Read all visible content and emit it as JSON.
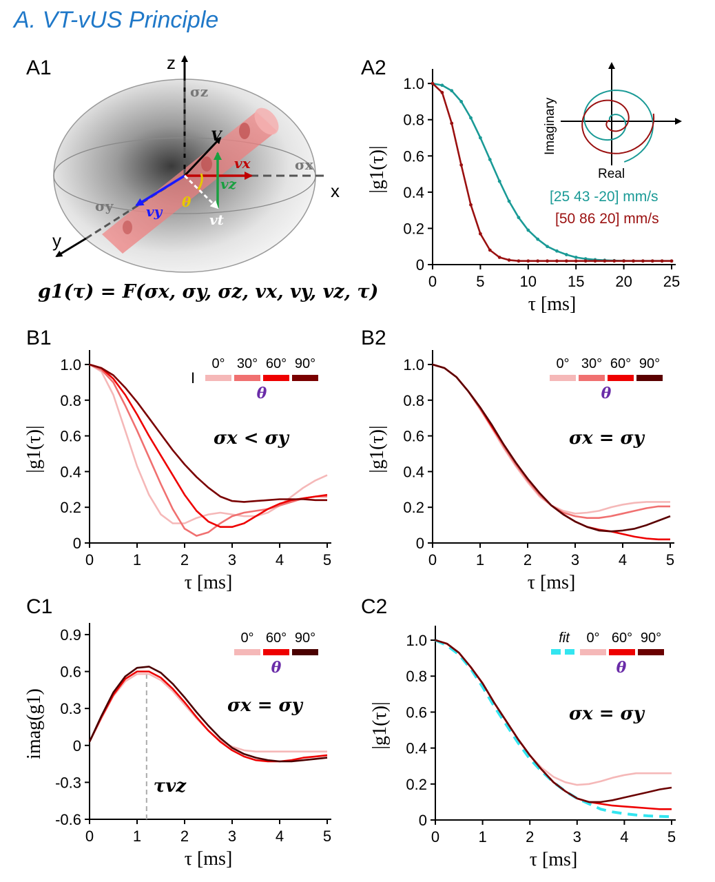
{
  "section_title": "A.   VT-vUS Principle",
  "panel_a1": {
    "label": "A1",
    "axis_x": "x",
    "axis_y": "y",
    "axis_z": "z",
    "sigma_x": "σx",
    "sigma_y": "σy",
    "sigma_z": "σz",
    "v_label": "V",
    "vx_label": "vx",
    "vy_label": "vy",
    "vz_label": "vz",
    "vt_label": "vt",
    "theta_label": "θ",
    "formula": "g1(τ) = F(σx, σy, σz, vx, vy, vz, τ)",
    "colors": {
      "vx": "#c00000",
      "vy": "#1a1aff",
      "vz": "#1aa040",
      "theta": "#e6c800",
      "vessel": "#f08080"
    }
  },
  "chart_data": [
    {
      "id": "A2",
      "label": "A2",
      "type": "line",
      "xlabel": "τ [ms]",
      "ylabel": "|g1(τ)|",
      "xlim": [
        0,
        25
      ],
      "ylim": [
        0,
        1.05
      ],
      "xticks": [
        0,
        5,
        10,
        15,
        20,
        25
      ],
      "yticks": [
        0,
        0.2,
        0.4,
        0.6,
        0.8,
        1.0
      ],
      "ytick_labels": [
        "0",
        "0.2",
        "0.4",
        "0.6",
        "0.8",
        "1.0"
      ],
      "series": [
        {
          "name": "[25 43 -20]  mm/s",
          "color": "#1a9a96",
          "x": [
            0,
            1,
            2,
            3,
            4,
            5,
            6,
            7,
            8,
            9,
            10,
            11,
            12,
            13,
            14,
            15,
            16,
            17,
            18,
            19,
            20,
            21,
            22,
            23,
            24,
            25
          ],
          "y": [
            1.0,
            0.99,
            0.96,
            0.9,
            0.81,
            0.7,
            0.58,
            0.46,
            0.35,
            0.26,
            0.19,
            0.14,
            0.1,
            0.075,
            0.055,
            0.04,
            0.032,
            0.027,
            0.024,
            0.022,
            0.021,
            0.02,
            0.02,
            0.02,
            0.02,
            0.02
          ]
        },
        {
          "name": "[50 86 20]   mm/s",
          "color": "#9a1010",
          "x": [
            0,
            1,
            2,
            3,
            4,
            5,
            6,
            7,
            8,
            9,
            10,
            11,
            12,
            13,
            14,
            15,
            16,
            17,
            18,
            19,
            20,
            21,
            22,
            23,
            24,
            25
          ],
          "y": [
            1.0,
            0.95,
            0.78,
            0.55,
            0.33,
            0.17,
            0.08,
            0.04,
            0.025,
            0.02,
            0.02,
            0.02,
            0.02,
            0.02,
            0.02,
            0.02,
            0.02,
            0.02,
            0.02,
            0.02,
            0.02,
            0.02,
            0.02,
            0.02,
            0.02,
            0.02
          ]
        }
      ],
      "inset": {
        "xlabel": "Real",
        "ylabel": "Imaginary"
      }
    },
    {
      "id": "B1",
      "label": "B1",
      "type": "line",
      "xlabel": "τ [ms]",
      "ylabel": "|g1(τ)|",
      "xlim": [
        0,
        5
      ],
      "ylim": [
        0,
        1.05
      ],
      "xticks": [
        0,
        1,
        2,
        3,
        4,
        5
      ],
      "yticks": [
        0,
        0.2,
        0.4,
        0.6,
        0.8,
        1.0
      ],
      "ytick_labels": [
        "0",
        "0.2",
        "0.4",
        "0.6",
        "0.8",
        "1.0"
      ],
      "condition": "σx < σy",
      "legend_title": "θ",
      "legend_marker": "I",
      "series": [
        {
          "name": "0°",
          "color": "#f5b8b8",
          "x": [
            0,
            0.25,
            0.5,
            0.75,
            1,
            1.25,
            1.5,
            1.75,
            2,
            2.25,
            2.5,
            2.75,
            3,
            3.25,
            3.5,
            3.75,
            4,
            4.25,
            4.5,
            4.75,
            5
          ],
          "y": [
            1.0,
            0.96,
            0.83,
            0.63,
            0.43,
            0.27,
            0.16,
            0.11,
            0.11,
            0.14,
            0.16,
            0.17,
            0.16,
            0.15,
            0.15,
            0.17,
            0.21,
            0.26,
            0.31,
            0.35,
            0.38
          ]
        },
        {
          "name": "30°",
          "color": "#f07070",
          "x": [
            0,
            0.25,
            0.5,
            0.75,
            1,
            1.25,
            1.5,
            1.75,
            2,
            2.25,
            2.5,
            2.75,
            3,
            3.25,
            3.5,
            3.75,
            4,
            4.25,
            4.5,
            4.75,
            5
          ],
          "y": [
            1.0,
            0.97,
            0.9,
            0.77,
            0.63,
            0.48,
            0.33,
            0.19,
            0.08,
            0.04,
            0.06,
            0.11,
            0.15,
            0.17,
            0.18,
            0.19,
            0.21,
            0.23,
            0.25,
            0.26,
            0.26
          ]
        },
        {
          "name": "60°",
          "color": "#ee0000",
          "x": [
            0,
            0.25,
            0.5,
            0.75,
            1,
            1.25,
            1.5,
            1.75,
            2,
            2.25,
            2.5,
            2.75,
            3,
            3.25,
            3.5,
            3.75,
            4,
            4.25,
            4.5,
            4.75,
            5
          ],
          "y": [
            1.0,
            0.98,
            0.92,
            0.83,
            0.72,
            0.6,
            0.49,
            0.38,
            0.27,
            0.18,
            0.12,
            0.09,
            0.09,
            0.11,
            0.15,
            0.19,
            0.22,
            0.24,
            0.25,
            0.26,
            0.27
          ]
        },
        {
          "name": "90°",
          "color": "#7a0000",
          "x": [
            0,
            0.25,
            0.5,
            0.75,
            1,
            1.25,
            1.5,
            1.75,
            2,
            2.25,
            2.5,
            2.75,
            3,
            3.25,
            3.5,
            3.75,
            4,
            4.25,
            4.5,
            4.75,
            5
          ],
          "y": [
            1.0,
            0.98,
            0.94,
            0.87,
            0.79,
            0.7,
            0.61,
            0.52,
            0.44,
            0.37,
            0.31,
            0.26,
            0.235,
            0.23,
            0.235,
            0.24,
            0.245,
            0.245,
            0.245,
            0.24,
            0.24
          ]
        }
      ]
    },
    {
      "id": "B2",
      "label": "B2",
      "type": "line",
      "xlabel": "τ [ms]",
      "ylabel": "|g1(τ)|",
      "xlim": [
        0,
        5
      ],
      "ylim": [
        0,
        1.05
      ],
      "xticks": [
        0,
        1,
        2,
        3,
        4,
        5
      ],
      "yticks": [
        0,
        0.2,
        0.4,
        0.6,
        0.8,
        1.0
      ],
      "ytick_labels": [
        "0",
        "0.2",
        "0.4",
        "0.6",
        "0.8",
        "1.0"
      ],
      "condition": "σx = σy",
      "legend_title": "θ",
      "series": [
        {
          "name": "0°",
          "color": "#f5b8b8",
          "x": [
            0,
            0.25,
            0.5,
            0.75,
            1,
            1.25,
            1.5,
            1.75,
            2,
            2.25,
            2.5,
            2.75,
            3,
            3.25,
            3.5,
            3.75,
            4,
            4.25,
            4.5,
            4.75,
            5
          ],
          "y": [
            1.0,
            0.98,
            0.93,
            0.85,
            0.75,
            0.64,
            0.53,
            0.43,
            0.34,
            0.26,
            0.21,
            0.18,
            0.165,
            0.17,
            0.18,
            0.2,
            0.215,
            0.225,
            0.23,
            0.23,
            0.23
          ]
        },
        {
          "name": "30°",
          "color": "#f07070",
          "x": [
            0,
            0.25,
            0.5,
            0.75,
            1,
            1.25,
            1.5,
            1.75,
            2,
            2.25,
            2.5,
            2.75,
            3,
            3.25,
            3.5,
            3.75,
            4,
            4.25,
            4.5,
            4.75,
            5
          ],
          "y": [
            1.0,
            0.98,
            0.93,
            0.85,
            0.75,
            0.65,
            0.54,
            0.44,
            0.35,
            0.27,
            0.21,
            0.17,
            0.15,
            0.14,
            0.14,
            0.15,
            0.165,
            0.18,
            0.195,
            0.205,
            0.205
          ]
        },
        {
          "name": "60°",
          "color": "#ee0000",
          "x": [
            0,
            0.25,
            0.5,
            0.75,
            1,
            1.25,
            1.5,
            1.75,
            2,
            2.25,
            2.5,
            2.75,
            3,
            3.25,
            3.5,
            3.75,
            4,
            4.25,
            4.5,
            4.75,
            5
          ],
          "y": [
            1.0,
            0.98,
            0.93,
            0.85,
            0.76,
            0.65,
            0.55,
            0.45,
            0.36,
            0.28,
            0.21,
            0.16,
            0.12,
            0.09,
            0.075,
            0.065,
            0.05,
            0.035,
            0.025,
            0.02,
            0.02
          ]
        },
        {
          "name": "90°",
          "color": "#5a0000",
          "x": [
            0,
            0.25,
            0.5,
            0.75,
            1,
            1.25,
            1.5,
            1.75,
            2,
            2.25,
            2.5,
            2.75,
            3,
            3.25,
            3.5,
            3.75,
            4,
            4.25,
            4.5,
            4.75,
            5
          ],
          "y": [
            1.0,
            0.98,
            0.93,
            0.85,
            0.76,
            0.66,
            0.55,
            0.45,
            0.36,
            0.28,
            0.21,
            0.16,
            0.12,
            0.09,
            0.07,
            0.065,
            0.07,
            0.08,
            0.1,
            0.125,
            0.15
          ]
        }
      ]
    },
    {
      "id": "C1",
      "label": "C1",
      "type": "line",
      "xlabel": "τ [ms]",
      "ylabel": "imag(g1)",
      "xlim": [
        0,
        5
      ],
      "ylim": [
        -0.6,
        0.95
      ],
      "xticks": [
        0,
        1,
        2,
        3,
        4,
        5
      ],
      "yticks": [
        -0.6,
        -0.3,
        0,
        0.3,
        0.6,
        0.9
      ],
      "ytick_labels": [
        "-0.6",
        "-0.3",
        "0",
        "0.3",
        "0.6",
        "0.9"
      ],
      "condition": "σx = σy",
      "legend_title": "θ",
      "annotation": "τvz",
      "annotation_x": 1.2,
      "series": [
        {
          "name": "0°",
          "color": "#f5b8b8",
          "x": [
            0,
            0.25,
            0.5,
            0.75,
            1,
            1.25,
            1.5,
            1.75,
            2,
            2.25,
            2.5,
            2.75,
            3,
            3.25,
            3.5,
            3.75,
            4,
            4.25,
            4.5,
            4.75,
            5
          ],
          "y": [
            0.03,
            0.22,
            0.4,
            0.52,
            0.58,
            0.58,
            0.53,
            0.44,
            0.33,
            0.22,
            0.12,
            0.04,
            -0.01,
            -0.04,
            -0.05,
            -0.05,
            -0.05,
            -0.05,
            -0.05,
            -0.05,
            -0.05
          ]
        },
        {
          "name": "60°",
          "color": "#ee0000",
          "x": [
            0,
            0.25,
            0.5,
            0.75,
            1,
            1.25,
            1.5,
            1.75,
            2,
            2.25,
            2.5,
            2.75,
            3,
            3.25,
            3.5,
            3.75,
            4,
            4.25,
            4.5,
            4.75,
            5
          ],
          "y": [
            0.03,
            0.23,
            0.41,
            0.54,
            0.6,
            0.6,
            0.55,
            0.46,
            0.35,
            0.23,
            0.12,
            0.03,
            -0.04,
            -0.09,
            -0.12,
            -0.13,
            -0.13,
            -0.12,
            -0.1,
            -0.09,
            -0.08
          ]
        },
        {
          "name": "90°",
          "color": "#4a0000",
          "x": [
            0,
            0.25,
            0.5,
            0.75,
            1,
            1.25,
            1.5,
            1.75,
            2,
            2.25,
            2.5,
            2.75,
            3,
            3.25,
            3.5,
            3.75,
            4,
            4.25,
            4.5,
            4.75,
            5
          ],
          "y": [
            0.03,
            0.24,
            0.43,
            0.56,
            0.63,
            0.64,
            0.59,
            0.5,
            0.39,
            0.27,
            0.16,
            0.06,
            -0.02,
            -0.07,
            -0.1,
            -0.12,
            -0.13,
            -0.13,
            -0.12,
            -0.11,
            -0.1
          ]
        }
      ]
    },
    {
      "id": "C2",
      "label": "C2",
      "type": "line",
      "xlabel": "τ [ms]",
      "ylabel": "|g1(τ)|",
      "xlim": [
        0,
        5
      ],
      "ylim": [
        0,
        1.05
      ],
      "xticks": [
        0,
        1,
        2,
        3,
        4,
        5
      ],
      "yticks": [
        0,
        0.2,
        0.4,
        0.6,
        0.8,
        1.0
      ],
      "ytick_labels": [
        "0",
        "0.2",
        "0.4",
        "0.6",
        "0.8",
        "1.0"
      ],
      "condition": "σx = σy",
      "legend_title": "θ",
      "series": [
        {
          "name": "fit",
          "color": "#33e5f0",
          "dashed": true,
          "x": [
            0,
            0.25,
            0.5,
            0.75,
            1,
            1.25,
            1.5,
            1.75,
            2,
            2.25,
            2.5,
            2.75,
            3,
            3.25,
            3.5,
            3.75,
            4,
            4.25,
            4.5,
            4.75,
            5
          ],
          "y": [
            1.0,
            0.97,
            0.92,
            0.84,
            0.74,
            0.63,
            0.53,
            0.43,
            0.34,
            0.27,
            0.21,
            0.16,
            0.12,
            0.09,
            0.06,
            0.045,
            0.035,
            0.028,
            0.023,
            0.02,
            0.018
          ]
        },
        {
          "name": "0°",
          "color": "#f5b8b8",
          "x": [
            0,
            0.25,
            0.5,
            0.75,
            1,
            1.25,
            1.5,
            1.75,
            2,
            2.25,
            2.5,
            2.75,
            3,
            3.25,
            3.5,
            3.75,
            4,
            4.25,
            4.5,
            4.75,
            5
          ],
          "y": [
            1.0,
            0.98,
            0.93,
            0.85,
            0.76,
            0.65,
            0.55,
            0.45,
            0.36,
            0.29,
            0.24,
            0.21,
            0.195,
            0.2,
            0.215,
            0.235,
            0.25,
            0.26,
            0.26,
            0.26,
            0.26
          ]
        },
        {
          "name": "60°",
          "color": "#ee0000",
          "x": [
            0,
            0.25,
            0.5,
            0.75,
            1,
            1.25,
            1.5,
            1.75,
            2,
            2.25,
            2.5,
            2.75,
            3,
            3.25,
            3.5,
            3.75,
            4,
            4.25,
            4.5,
            4.75,
            5
          ],
          "y": [
            1.0,
            0.98,
            0.93,
            0.85,
            0.76,
            0.65,
            0.55,
            0.45,
            0.36,
            0.28,
            0.21,
            0.16,
            0.12,
            0.1,
            0.09,
            0.08,
            0.075,
            0.07,
            0.065,
            0.06,
            0.06
          ]
        },
        {
          "name": "90°",
          "color": "#6a0000",
          "x": [
            0,
            0.25,
            0.5,
            0.75,
            1,
            1.25,
            1.5,
            1.75,
            2,
            2.25,
            2.5,
            2.75,
            3,
            3.25,
            3.5,
            3.75,
            4,
            4.25,
            4.5,
            4.75,
            5
          ],
          "y": [
            1.0,
            0.98,
            0.93,
            0.85,
            0.76,
            0.65,
            0.55,
            0.45,
            0.36,
            0.28,
            0.21,
            0.16,
            0.12,
            0.1,
            0.1,
            0.11,
            0.125,
            0.14,
            0.155,
            0.17,
            0.18
          ]
        }
      ]
    }
  ]
}
